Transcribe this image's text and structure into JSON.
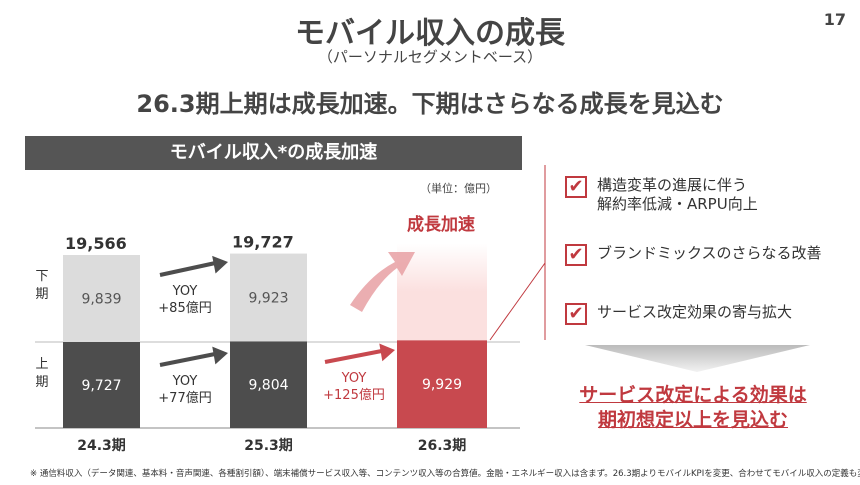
{
  "title": "モバイル収入の成長",
  "subtitle": "（パーソナルセグメントベース）",
  "page_number": "17",
  "headline": "26.3期上期は成長加速。下期はさらなる成長を見込む",
  "chart_data": {
    "type": "bar",
    "title": "モバイル収入*の成長加速",
    "unit": "（単位：億円）",
    "categories": [
      "24.3期",
      "25.3期",
      "26.3期"
    ],
    "series": [
      {
        "name": "上期",
        "values": [
          9727,
          9804,
          9929
        ]
      },
      {
        "name": "下期",
        "values": [
          9839,
          9923,
          null
        ]
      }
    ],
    "totals": [
      "19,566",
      "19,727",
      ""
    ],
    "labels": {
      "upper": [
        "9,727",
        "9,804",
        "9,929"
      ],
      "lower": [
        "9,839",
        "9,923",
        ""
      ]
    },
    "row_labels": {
      "second_half": "下期",
      "first_half": "上期"
    },
    "yoy": {
      "h2_25": [
        "YOY",
        "+85億円"
      ],
      "h1_25": [
        "YOY",
        "+77億円"
      ],
      "h1_26": [
        "YOY",
        "+125億円"
      ]
    },
    "annotation": "成長加速",
    "colors": {
      "h1": "#4d4d4d",
      "h2": "#dcdcdc",
      "h1_26": "#c8494f",
      "h2_26": "#fbe0df",
      "accent": "#c0393f"
    }
  },
  "right": {
    "items": [
      [
        "構造変革の進展に伴う",
        "解約率低減・ARPU向上"
      ],
      [
        "ブランドミックスのさらなる改善"
      ],
      [
        "サービス改定効果の寄与拡大"
      ]
    ],
    "check_icon": "check-box-icon",
    "conclusion": [
      "サービス改定による効果は",
      "期初想定以上を見込む"
    ]
  },
  "footnote": "※ 通信料収入（データ関連、基本料・音声関連、各種割引額）、端末補償サービス収入等、コンテンツ収入等の合算値。金融・エネルギー収入は含まず。26.3期よりモバイルKPIを変更、合わせてモバイル収入の定義も変更"
}
